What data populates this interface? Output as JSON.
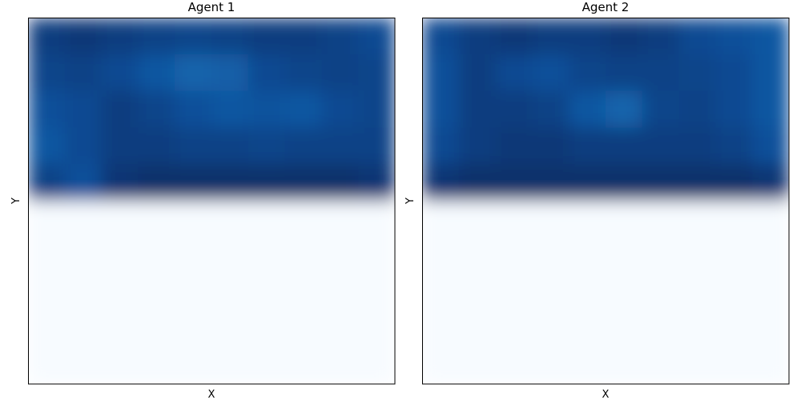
{
  "chart_data": [
    {
      "type": "heatmap",
      "title": "Agent 1",
      "xlabel": "X",
      "ylabel": "Y",
      "colormap": "Blues",
      "ticks": false,
      "grid": false,
      "values": [
        [
          0.95,
          0.97,
          0.95,
          0.93,
          0.92,
          0.93,
          0.95,
          0.95,
          0.93,
          0.9
        ],
        [
          0.92,
          0.93,
          0.9,
          0.85,
          0.8,
          0.82,
          0.9,
          0.92,
          0.93,
          0.92
        ],
        [
          0.88,
          0.9,
          0.95,
          0.92,
          0.88,
          0.85,
          0.87,
          0.85,
          0.9,
          0.92
        ],
        [
          0.85,
          0.9,
          0.95,
          0.95,
          0.93,
          0.93,
          0.92,
          0.93,
          0.93,
          0.93
        ],
        [
          0.93,
          0.88,
          0.98,
          1.0,
          1.0,
          1.0,
          1.0,
          1.0,
          1.0,
          0.98
        ],
        [
          0,
          0,
          0,
          0,
          0,
          0,
          0,
          0,
          0,
          0
        ],
        [
          0,
          0,
          0,
          0,
          0,
          0,
          0,
          0,
          0,
          0
        ],
        [
          0,
          0,
          0,
          0,
          0,
          0,
          0,
          0,
          0,
          0
        ],
        [
          0,
          0,
          0,
          0,
          0,
          0,
          0,
          0,
          0,
          0
        ],
        [
          0,
          0,
          0,
          0,
          0,
          0,
          0,
          0,
          0,
          0
        ]
      ]
    },
    {
      "type": "heatmap",
      "title": "Agent 2",
      "xlabel": "X",
      "ylabel": "Y",
      "colormap": "Blues",
      "ticks": false,
      "grid": false,
      "values": [
        [
          0.9,
          0.95,
          0.97,
          0.95,
          0.95,
          0.97,
          0.95,
          0.9,
          0.88,
          0.85
        ],
        [
          0.88,
          0.95,
          0.9,
          0.88,
          0.92,
          0.93,
          0.93,
          0.92,
          0.9,
          0.85
        ],
        [
          0.88,
          0.95,
          0.95,
          0.93,
          0.85,
          0.8,
          0.92,
          0.93,
          0.9,
          0.85
        ],
        [
          0.9,
          0.95,
          0.97,
          0.97,
          0.95,
          0.95,
          0.95,
          0.95,
          0.93,
          0.88
        ],
        [
          0.98,
          1.0,
          1.0,
          1.0,
          1.0,
          1.0,
          1.0,
          1.0,
          1.0,
          0.98
        ],
        [
          0,
          0,
          0,
          0,
          0,
          0,
          0,
          0,
          0,
          0
        ],
        [
          0,
          0,
          0,
          0,
          0,
          0,
          0,
          0,
          0,
          0
        ],
        [
          0,
          0,
          0,
          0,
          0,
          0,
          0,
          0,
          0,
          0
        ],
        [
          0,
          0,
          0,
          0,
          0,
          0,
          0,
          0,
          0,
          0
        ],
        [
          0,
          0,
          0,
          0,
          0,
          0,
          0,
          0,
          0,
          0
        ]
      ]
    }
  ]
}
